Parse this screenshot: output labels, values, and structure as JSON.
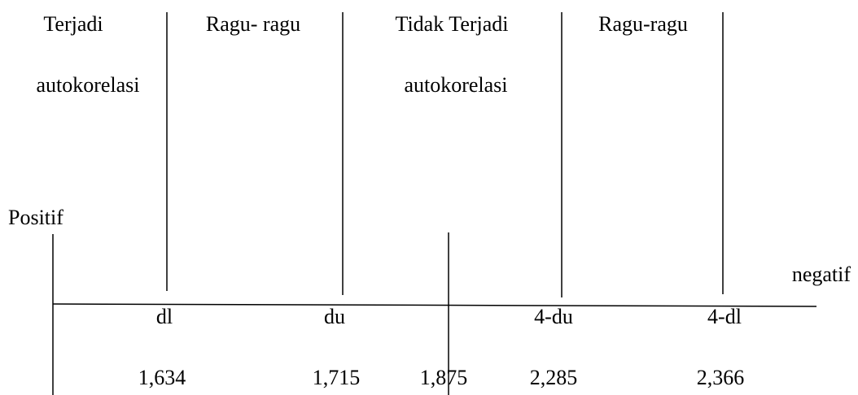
{
  "regions": [
    {
      "line1": "Terjadi",
      "line2": "autokorelasi"
    },
    {
      "line1": "Ragu- ragu"
    },
    {
      "line1": "Tidak Terjadi",
      "line2": "autokorelasi"
    },
    {
      "line1": "Ragu-ragu"
    }
  ],
  "left_label": "Positif",
  "right_label": "negatif",
  "boundaries": [
    {
      "symbol": "dl",
      "value": "1,634"
    },
    {
      "symbol": "du",
      "value": "1,715"
    },
    {
      "value": "1,875"
    },
    {
      "symbol": "4-du",
      "value": "2,285"
    },
    {
      "symbol": "4-dl",
      "value": "2,366"
    }
  ]
}
